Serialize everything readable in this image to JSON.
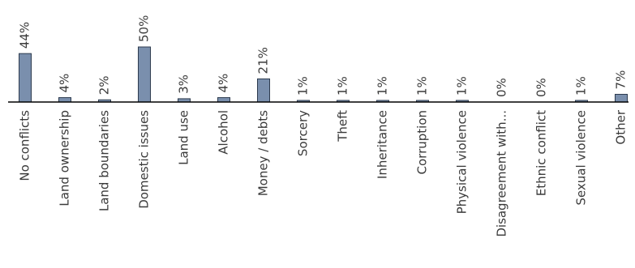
{
  "chart_data": {
    "type": "bar",
    "categories": [
      "No conflicts",
      "Land ownership",
      "Land boundaries",
      "Domestic issues",
      "Land use",
      "Alcohol",
      "Money / debts",
      "Sorcery",
      "Theft",
      "Inheritance",
      "Corruption",
      "Physical violence",
      "Disagreement with...",
      "Ethnic conflict",
      "Sexual violence",
      "Other"
    ],
    "values": [
      44,
      4,
      2,
      50,
      3,
      4,
      21,
      1,
      1,
      1,
      1,
      1,
      0,
      0,
      1,
      7
    ],
    "value_labels": [
      "44%",
      "4%",
      "2%",
      "50%",
      "3%",
      "4%",
      "21%",
      "1%",
      "1%",
      "1%",
      "1%",
      "1%",
      "0%",
      "0%",
      "1%",
      "7%"
    ],
    "ylim": [
      0,
      50
    ],
    "grid": false,
    "legend": "none",
    "bar_color": "#7a8fad"
  }
}
